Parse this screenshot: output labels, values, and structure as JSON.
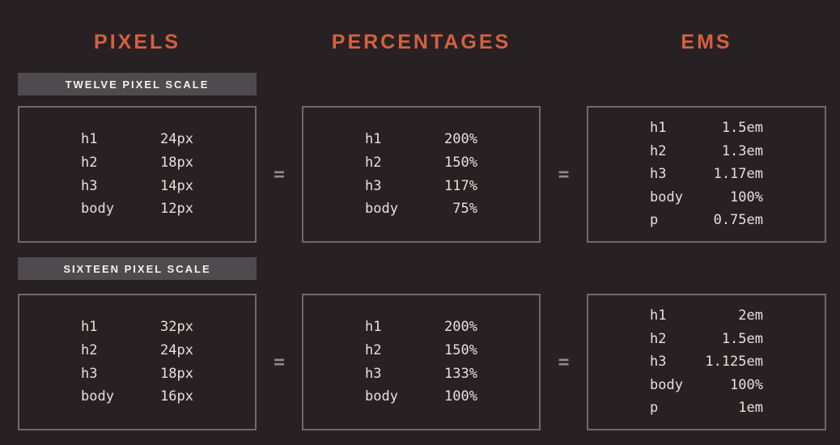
{
  "colors": {
    "background": "#282123",
    "accent_orange": "#d6603f",
    "badge_background": "#4f4a4d",
    "badge_text": "#f3f1ee",
    "box_border": "#6e696c",
    "mono_text": "#e4e1dc",
    "equals_gray": "#8e8b8b"
  },
  "equals_sign": "=",
  "column_headers": [
    "PIXELS",
    "PERCENTAGES",
    "EMS"
  ],
  "sections": [
    {
      "badge": "TWELVE PIXEL SCALE",
      "boxes": [
        {
          "unit": "pixels",
          "rows": [
            {
              "label": "h1",
              "value": "24px"
            },
            {
              "label": "h2",
              "value": "18px"
            },
            {
              "label": "h3",
              "value": "14px"
            },
            {
              "label": "body",
              "value": "12px"
            }
          ]
        },
        {
          "unit": "percentages",
          "rows": [
            {
              "label": "h1",
              "value": "200%"
            },
            {
              "label": "h2",
              "value": "150%"
            },
            {
              "label": "h3",
              "value": "117%"
            },
            {
              "label": "body",
              "value": "75%"
            }
          ]
        },
        {
          "unit": "ems",
          "rows": [
            {
              "label": "h1",
              "value": "1.5em"
            },
            {
              "label": "h2",
              "value": "1.3em"
            },
            {
              "label": "h3",
              "value": "1.17em"
            },
            {
              "label": "body",
              "value": "100%"
            },
            {
              "label": "p",
              "value": "0.75em"
            }
          ]
        }
      ]
    },
    {
      "badge": "SIXTEEN PIXEL SCALE",
      "boxes": [
        {
          "unit": "pixels",
          "rows": [
            {
              "label": "h1",
              "value": "32px"
            },
            {
              "label": "h2",
              "value": "24px"
            },
            {
              "label": "h3",
              "value": "18px"
            },
            {
              "label": "body",
              "value": "16px"
            }
          ]
        },
        {
          "unit": "percentages",
          "rows": [
            {
              "label": "h1",
              "value": "200%"
            },
            {
              "label": "h2",
              "value": "150%"
            },
            {
              "label": "h3",
              "value": "133%"
            },
            {
              "label": "body",
              "value": "100%"
            }
          ]
        },
        {
          "unit": "ems",
          "rows": [
            {
              "label": "h1",
              "value": "2em"
            },
            {
              "label": "h2",
              "value": "1.5em"
            },
            {
              "label": "h3",
              "value": "1.125em"
            },
            {
              "label": "body",
              "value": "100%"
            },
            {
              "label": "p",
              "value": "1em"
            }
          ]
        }
      ]
    }
  ]
}
